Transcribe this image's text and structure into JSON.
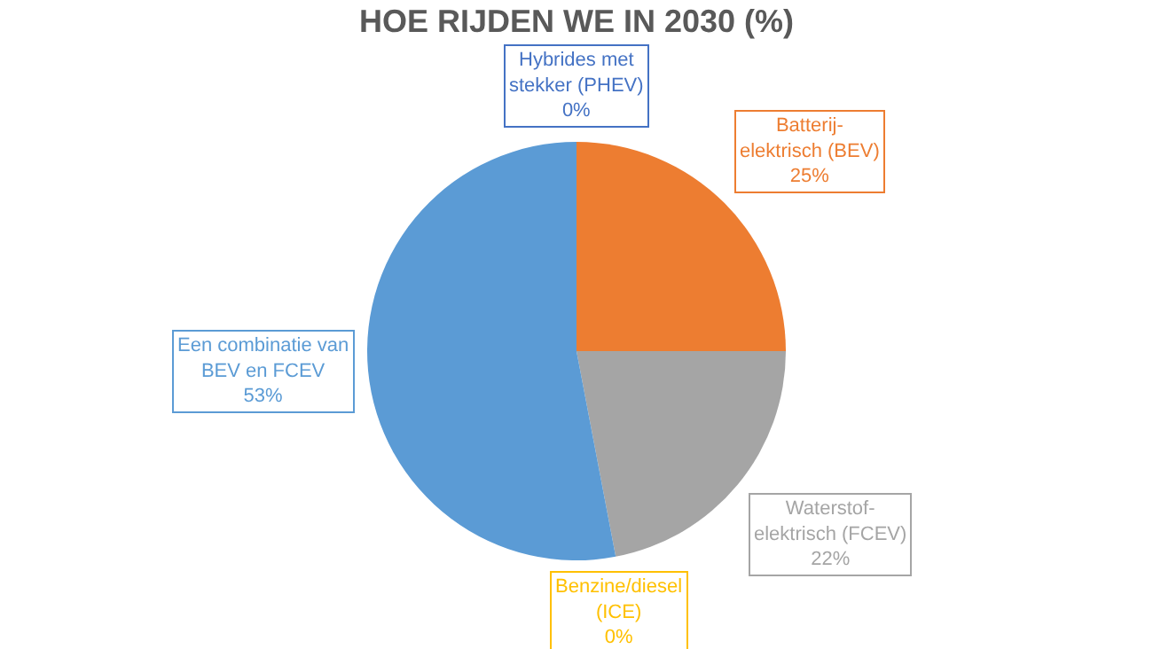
{
  "chart_data": {
    "type": "pie",
    "title": "HOE RIJDEN WE IN 2030 (%)",
    "categories": [
      "Batterij-elektrisch (BEV)",
      "Waterstof-elektrisch (FCEV)",
      "Benzine/diesel (ICE)",
      "Een combinatie van BEV en FCEV",
      "Hybrides met stekker (PHEV)"
    ],
    "values": [
      25,
      22,
      0,
      53,
      0
    ],
    "value_labels": [
      "25%",
      "22%",
      "0%",
      "53%",
      "0%"
    ],
    "colors": [
      "#ed7d31",
      "#a5a5a5",
      "#ffc000",
      "#5b9bd5",
      "#4472c4"
    ],
    "legend": false
  }
}
